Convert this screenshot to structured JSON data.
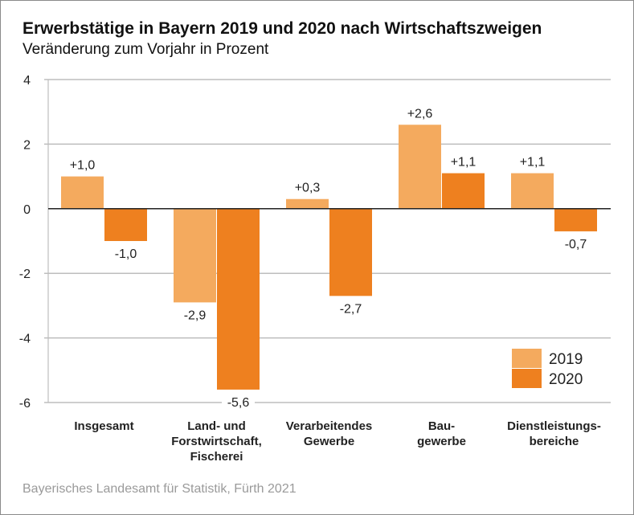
{
  "chart_data": {
    "type": "bar",
    "title": "Erwerbstätige in Bayern 2019 und 2020 nach Wirtschaftszweigen",
    "subtitle": "Veränderung zum Vorjahr in Prozent",
    "source": "Bayerisches Landesamt für Statistik, Fürth 2021",
    "xlabel": "",
    "ylabel": "",
    "ylim": [
      -6,
      4
    ],
    "yticks": [
      4,
      2,
      0,
      -2,
      -4,
      -6
    ],
    "ytick_labels": [
      "4",
      "2",
      "0",
      "-2",
      "-4",
      "-6"
    ],
    "grid": true,
    "legend_position": "bottom-right",
    "categories": [
      [
        "Insgesamt"
      ],
      [
        "Land- und",
        "Forstwirtschaft,",
        "Fischerei"
      ],
      [
        "Verarbeitendes",
        "Gewerbe"
      ],
      [
        "Bau-",
        "gewerbe"
      ],
      [
        "Dienstleistungs-",
        "bereiche"
      ]
    ],
    "series": [
      {
        "name": "2019",
        "color": "#f4aa5e",
        "values": [
          1.0,
          -2.9,
          0.3,
          2.6,
          1.1
        ],
        "labels": [
          "+1,0",
          "-2,9",
          "+0,3",
          "+2,6",
          "+1,1"
        ]
      },
      {
        "name": "2020",
        "color": "#ee801f",
        "values": [
          -1.0,
          -5.6,
          -2.7,
          1.1,
          -0.7
        ],
        "labels": [
          "-1,0",
          "-5,6",
          "-2,7",
          "+1,1",
          "-0,7"
        ]
      }
    ]
  }
}
